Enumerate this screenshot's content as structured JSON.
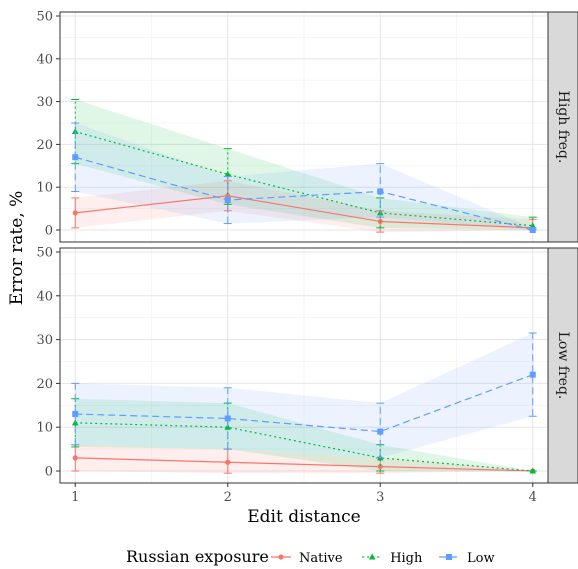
{
  "chart_data": {
    "type": "line",
    "xlabel": "Edit distance",
    "ylabel": "Error rate, %",
    "x": [
      1,
      2,
      3,
      4
    ],
    "x_ticks": [
      "1",
      "2",
      "3",
      "4"
    ],
    "y_ticks": [
      "0",
      "10",
      "20",
      "30",
      "40",
      "50"
    ],
    "ylim": [
      0,
      50
    ],
    "xlim": [
      0.9,
      4.1
    ],
    "grid": true,
    "legend": {
      "title": "Russian exposure",
      "position": "bottom"
    },
    "series_styles": [
      {
        "name": "Native",
        "color": "#F8766D",
        "dash": "",
        "marker": "circle"
      },
      {
        "name": "High",
        "color": "#00BA38",
        "dash": "2,3",
        "marker": "triangle"
      },
      {
        "name": "Low",
        "color": "#619CFF",
        "dash": "7,4",
        "marker": "square"
      }
    ],
    "panels": [
      {
        "label": "High freq.",
        "series": [
          {
            "name": "Native",
            "values": [
              4,
              8,
              2,
              0.5
            ],
            "lower": [
              0.5,
              4.5,
              -0.5,
              0
            ],
            "upper": [
              7.5,
              11.5,
              4.5,
              2.5
            ]
          },
          {
            "name": "High",
            "values": [
              23,
              13,
              4,
              1
            ],
            "lower": [
              15.5,
              6,
              0.5,
              0
            ],
            "upper": [
              30.5,
              19,
              7.5,
              3
            ]
          },
          {
            "name": "Low",
            "values": [
              17,
              7,
              9,
              0
            ],
            "lower": [
              9,
              1.5,
              3,
              0
            ],
            "upper": [
              25,
              12.5,
              15.5,
              0.5
            ]
          }
        ]
      },
      {
        "label": "Low freq.",
        "series": [
          {
            "name": "Native",
            "values": [
              3,
              2,
              1,
              0
            ],
            "lower": [
              0,
              -0.5,
              -0.5,
              0
            ],
            "upper": [
              6,
              5,
              3,
              0
            ]
          },
          {
            "name": "High",
            "values": [
              11,
              10,
              3,
              0
            ],
            "lower": [
              5.5,
              5,
              0,
              0
            ],
            "upper": [
              16.5,
              15.5,
              6,
              0
            ]
          },
          {
            "name": "Low",
            "values": [
              13,
              12,
              9,
              22
            ],
            "lower": [
              6,
              5,
              3,
              12.5
            ],
            "upper": [
              20,
              19,
              15.5,
              31.5
            ]
          }
        ]
      }
    ]
  }
}
